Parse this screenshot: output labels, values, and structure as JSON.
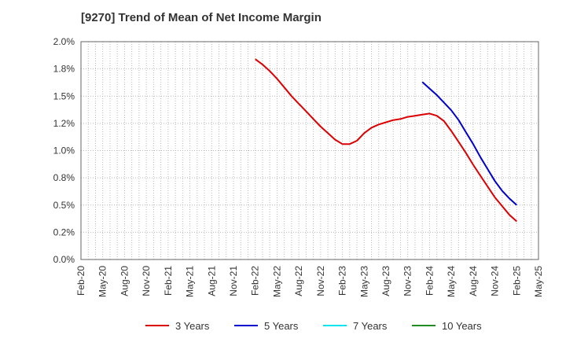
{
  "chart_data": {
    "type": "line",
    "title": "[9270]  Trend of Mean of Net Income Margin",
    "xlabel": "",
    "ylabel": "",
    "x_ticks": [
      "Feb-20",
      "May-20",
      "Aug-20",
      "Nov-20",
      "Feb-21",
      "May-21",
      "Aug-21",
      "Nov-21",
      "Feb-22",
      "May-22",
      "Aug-22",
      "Nov-22",
      "Feb-23",
      "May-23",
      "Aug-23",
      "Nov-23",
      "Feb-24",
      "May-24",
      "Aug-24",
      "Nov-24",
      "Feb-25",
      "May-25"
    ],
    "y_ticks": [
      "0.0%",
      "0.2%",
      "0.5%",
      "0.8%",
      "1.0%",
      "1.2%",
      "1.5%",
      "1.8%",
      "2.0%"
    ],
    "ylim": [
      0,
      2.0
    ],
    "grid": true,
    "legend_position": "bottom",
    "colors": {
      "3 Years": "#dd0000",
      "5 Years": "#0000cc",
      "7 Years": "#00e5ee",
      "10 Years": "#228b22"
    },
    "series": [
      {
        "name": "3 Years",
        "color": "#dd0000",
        "x": [
          "Feb-22",
          "Mar-22",
          "Apr-22",
          "May-22",
          "Jun-22",
          "Jul-22",
          "Aug-22",
          "Sep-22",
          "Oct-22",
          "Nov-22",
          "Dec-22",
          "Jan-23",
          "Feb-23",
          "Mar-23",
          "Apr-23",
          "May-23",
          "Jun-23",
          "Jul-23",
          "Aug-23",
          "Sep-23",
          "Oct-23",
          "Nov-23",
          "Dec-23",
          "Jan-24",
          "Feb-24",
          "Mar-24",
          "Apr-24",
          "May-24",
          "Jun-24",
          "Jul-24",
          "Aug-24",
          "Sep-24",
          "Oct-24",
          "Nov-24",
          "Dec-24",
          "Jan-25",
          "Feb-25"
        ],
        "values": [
          1.84,
          1.79,
          1.73,
          1.66,
          1.58,
          1.5,
          1.43,
          1.36,
          1.29,
          1.22,
          1.16,
          1.1,
          1.06,
          1.06,
          1.09,
          1.16,
          1.21,
          1.24,
          1.26,
          1.28,
          1.29,
          1.31,
          1.32,
          1.33,
          1.34,
          1.32,
          1.27,
          1.18,
          1.08,
          0.98,
          0.87,
          0.77,
          0.67,
          0.57,
          0.49,
          0.41,
          0.35
        ]
      },
      {
        "name": "5 Years",
        "color": "#0000cc",
        "x": [
          "Jan-24",
          "Feb-24",
          "Mar-24",
          "Apr-24",
          "May-24",
          "Jun-24",
          "Jul-24",
          "Aug-24",
          "Sep-24",
          "Oct-24",
          "Nov-24",
          "Dec-24",
          "Jan-25",
          "Feb-25"
        ],
        "values": [
          1.63,
          1.57,
          1.51,
          1.44,
          1.37,
          1.28,
          1.17,
          1.06,
          0.94,
          0.83,
          0.72,
          0.63,
          0.56,
          0.5
        ]
      },
      {
        "name": "7 Years",
        "color": "#00e5ee",
        "x": [],
        "values": []
      },
      {
        "name": "10 Years",
        "color": "#228b22",
        "x": [],
        "values": []
      }
    ]
  }
}
